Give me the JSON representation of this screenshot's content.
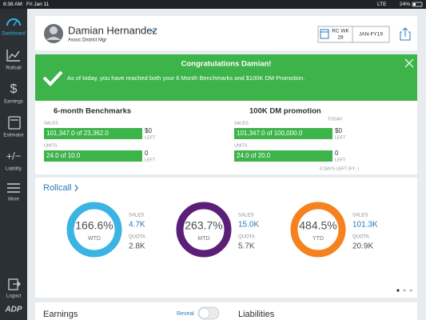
{
  "status_bar": {
    "time": "8:38 AM",
    "date": "Fri Jan 11",
    "network": "LTE",
    "battery": "24%"
  },
  "sidebar": {
    "items": [
      "Dashboard",
      "Rollcall",
      "Earnings",
      "Estimator",
      "Liability",
      "More"
    ],
    "logout": "Logout",
    "logo": "ADP"
  },
  "header": {
    "name": "Damian Hernandez",
    "role": "Assoc District Mgr",
    "week_label": "RC WK",
    "week": "28",
    "period": "JAN-FY19"
  },
  "banner": {
    "title": "Congratulations Damian!",
    "message": "As of today, you have reached both your 6 Month Benchmarks and $100K DM Promotion."
  },
  "benchmarks": [
    {
      "title": "6-month Benchmarks",
      "rows": [
        {
          "label": "SALES",
          "bar": "101,347.0 of 23,362.0",
          "remaining": "$0",
          "remaining_label": "LEFT"
        },
        {
          "label": "UNITS",
          "bar": "24.0 of 10.0",
          "remaining": "0",
          "remaining_label": "LEFT"
        }
      ]
    },
    {
      "title": "100K DM promotion",
      "today": "TODAY",
      "rows": [
        {
          "label": "SALES",
          "bar": "101,347.0 of 100,000.0",
          "remaining": "$0",
          "remaining_label": "LEFT"
        },
        {
          "label": "UNITS",
          "bar": "24.0 of 20.0",
          "remaining": "0",
          "remaining_label": "LEFT"
        }
      ],
      "footer": "0 DAYS LEFT (FY- )"
    }
  ],
  "rollcall": {
    "title": "Rollcall",
    "rings": [
      {
        "percent": "166.6%",
        "period": "WTD",
        "sales_label": "SALES",
        "sales": "4.7K",
        "quota_label": "QUOTA",
        "quota": "2.8K",
        "color": "#3bb3e3"
      },
      {
        "percent": "263.7%",
        "period": "MTD",
        "sales_label": "SALES",
        "sales": "15.0K",
        "quota_label": "QUOTA",
        "quota": "5.7K",
        "color": "#5b1f78"
      },
      {
        "percent": "484.5%",
        "period": "YTD",
        "sales_label": "SALES",
        "sales": "101.3K",
        "quota_label": "QUOTA",
        "quota": "20.9K",
        "color": "#f5821f"
      }
    ]
  },
  "bottom": {
    "earnings": "Earnings",
    "reveal": "Reveal",
    "liabilities": "Liabilities"
  }
}
